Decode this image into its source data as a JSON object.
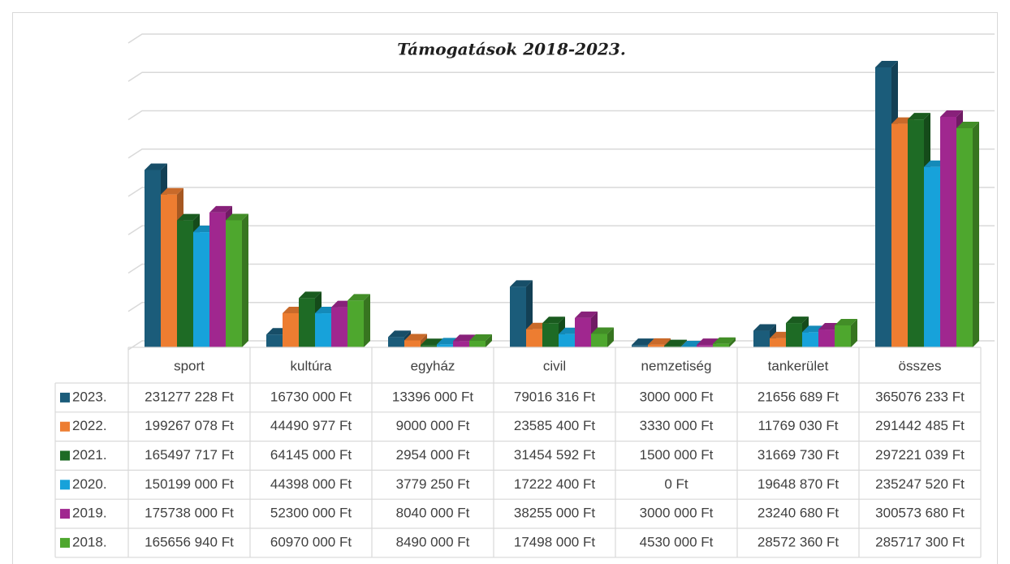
{
  "chart_data": {
    "type": "bar3d",
    "title": "Támogatások 2018-2023.",
    "categories": [
      "sport",
      "kultúra",
      "egyház",
      "civil",
      "nemzetiség",
      "tankerület",
      "összes"
    ],
    "ylim": [
      0,
      400000000
    ],
    "yticks": [
      0,
      50000000,
      100000000,
      150000000,
      200000000,
      250000000,
      300000000,
      350000000,
      400000000
    ],
    "grid": true,
    "series": [
      {
        "name": "2023.",
        "color": "#1b5c7a",
        "values": [
          231277228,
          16730000,
          13396000,
          79016316,
          3000000,
          21656689,
          365076233
        ],
        "value_labels": [
          "231277 228 Ft",
          "16730 000 Ft",
          "13396 000 Ft",
          "79016 316 Ft",
          "3000 000 Ft",
          "21656 689 Ft",
          "365076 233 Ft"
        ]
      },
      {
        "name": "2022.",
        "color": "#ed7d31",
        "values": [
          199267078,
          44490977,
          9000000,
          23585400,
          3330000,
          11769030,
          291442485
        ],
        "value_labels": [
          "199267 078 Ft",
          "44490 977 Ft",
          "9000 000 Ft",
          "23585 400 Ft",
          "3330 000 Ft",
          "11769 030 Ft",
          "291442 485 Ft"
        ]
      },
      {
        "name": "2021.",
        "color": "#1e6b25",
        "values": [
          165497717,
          64145000,
          2954000,
          31454592,
          1500000,
          31669730,
          297221039
        ],
        "value_labels": [
          "165497 717 Ft",
          "64145 000 Ft",
          "2954 000 Ft",
          "31454 592 Ft",
          "1500 000 Ft",
          "31669 730 Ft",
          "297221 039 Ft"
        ]
      },
      {
        "name": "2020.",
        "color": "#17a2da",
        "values": [
          150199000,
          44398000,
          3779250,
          17222400,
          0,
          19648870,
          235247520
        ],
        "value_labels": [
          "150199 000 Ft",
          "44398 000 Ft",
          "3779 250 Ft",
          "17222 400 Ft",
          "0 Ft",
          "19648 870 Ft",
          "235247 520 Ft"
        ]
      },
      {
        "name": "2019.",
        "color": "#a0278f",
        "values": [
          175738000,
          52300000,
          8040000,
          38255000,
          3000000,
          23240680,
          300573680
        ],
        "value_labels": [
          "175738 000 Ft",
          "52300 000 Ft",
          "8040 000 Ft",
          "38255 000 Ft",
          "3000 000 Ft",
          "23240 680 Ft",
          "300573 680 Ft"
        ]
      },
      {
        "name": "2018.",
        "color": "#4ea72e",
        "values": [
          165656940,
          60970000,
          8490000,
          17498000,
          4530000,
          28572360,
          285717300
        ],
        "value_labels": [
          "165656 940 Ft",
          "60970 000 Ft",
          "8490 000 Ft",
          "17498 000 Ft",
          "4530 000 Ft",
          "28572 360 Ft",
          "285717 300 Ft"
        ]
      }
    ]
  }
}
